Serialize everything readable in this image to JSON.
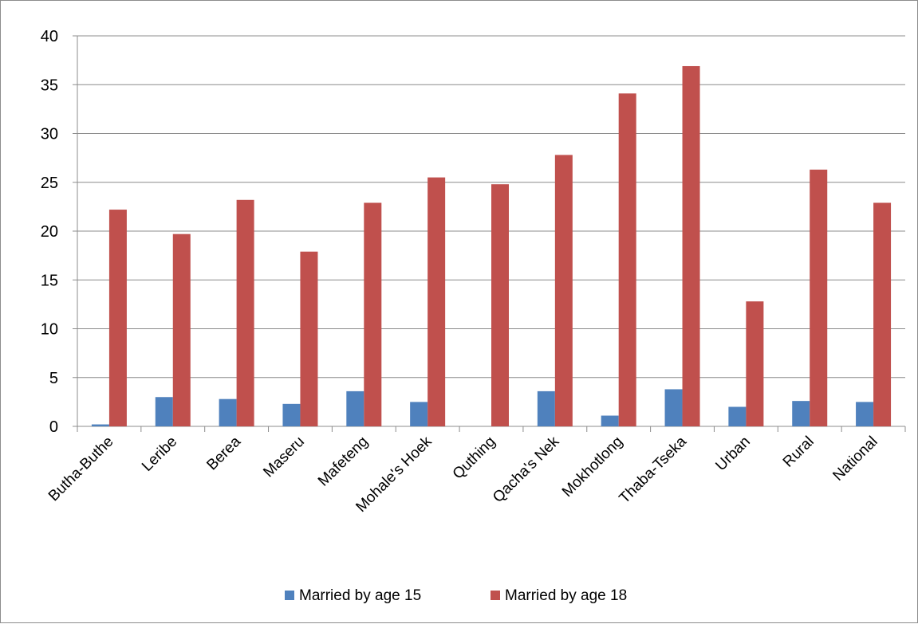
{
  "chart_data": {
    "type": "bar",
    "categories": [
      "Butha-Buthe",
      "Leribe",
      "Berea",
      "Maseru",
      "Mafeteng",
      "Mohale's Hoek",
      "Quthing",
      "Qacha's Nek",
      "Mokhotlong",
      "Thaba-Tseka",
      "Urban",
      "Rural",
      "National"
    ],
    "series": [
      {
        "name": "Married by age 15",
        "color": "#4f81bd",
        "values": [
          0.2,
          3.0,
          2.8,
          2.3,
          3.6,
          2.5,
          0.0,
          3.6,
          1.1,
          3.8,
          2.0,
          2.6,
          2.5
        ]
      },
      {
        "name": "Married by age 18",
        "color": "#c0504d",
        "values": [
          22.2,
          19.7,
          23.2,
          17.9,
          22.9,
          25.5,
          24.8,
          27.8,
          34.1,
          36.9,
          12.8,
          26.3,
          22.9
        ]
      }
    ],
    "y_ticks": [
      "0",
      "5",
      "10",
      "15",
      "20",
      "25",
      "30",
      "35",
      "40"
    ],
    "ylim": [
      0,
      40
    ],
    "grid": true,
    "legend_position": "bottom",
    "title": "",
    "xlabel": "",
    "ylabel": ""
  }
}
